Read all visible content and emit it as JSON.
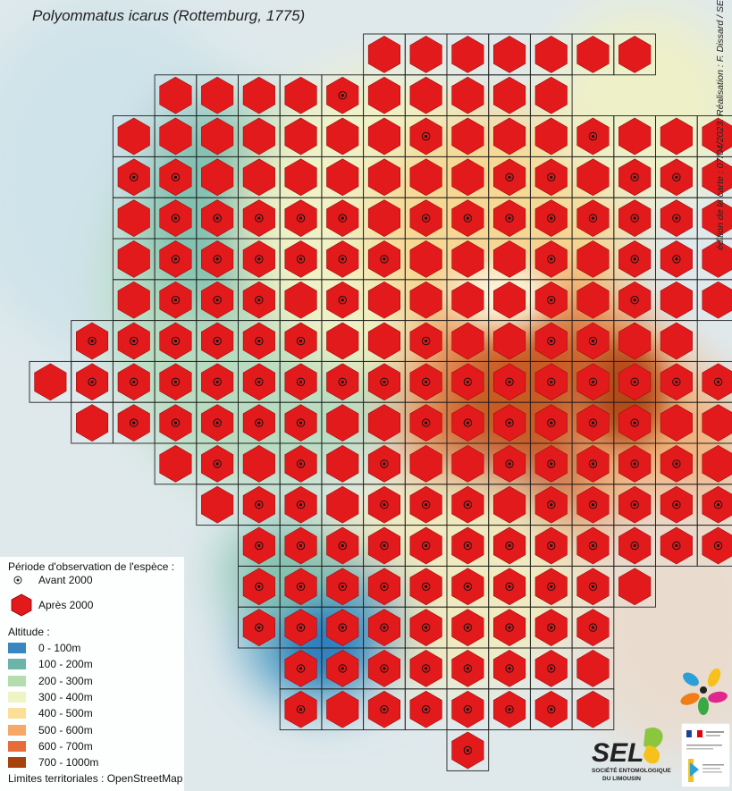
{
  "title": "Polyommatus icarus (Rottemburg, 1775)",
  "credit": "édition de la carte : 07/04/2023. Réalisation : F. Dissard / SEL",
  "legend": {
    "period_title": "Période d'observation de l'espèce :",
    "before": "Avant 2000",
    "after": "Après 2000",
    "altitude_title": "Altitude :",
    "altitude_classes": [
      {
        "label": "0 - 100m",
        "color": "#3a86c0"
      },
      {
        "label": "100 - 200m",
        "color": "#6bb5a8"
      },
      {
        "label": "200 - 300m",
        "color": "#b5dcae"
      },
      {
        "label": "300 - 400m",
        "color": "#eef4c4"
      },
      {
        "label": "400 - 500m",
        "color": "#fbdf98"
      },
      {
        "label": "500 - 600m",
        "color": "#f5a868"
      },
      {
        "label": "600 - 700m",
        "color": "#e66c3a"
      },
      {
        "label": "700 - 1000m",
        "color": "#a8420c"
      }
    ],
    "limits": "Limites territoriales : OpenStreetMap"
  },
  "colors": {
    "hexagon": "#e31a1c",
    "grid": "#222222"
  },
  "logo": {
    "name": "SEL",
    "subtitle1": "SOCIÉTÉ ENTOMOLOGIQUE",
    "subtitle2": "DU LIMOUSIN"
  },
  "grid": {
    "rows": [
      {
        "cells": "........HHHHHHH.."
      },
      {
        "cells": "...HHHHDHHHHH...."
      },
      {
        "cells": "..HHHHHHHDHHHDHHH"
      },
      {
        "cells": "..DDHHHHHHHDDHDDH"
      },
      {
        "cells": "..HDDDDDHDDDDDDDH"
      },
      {
        "cells": "..HDDDDDDHHHDHDDH"
      },
      {
        "cells": "..HDDDHDHHHHDHDHH"
      },
      {
        "cells": ".DDDDDDHHDHHDDHH."
      },
      {
        "cells": "HDDDDDDDDDDDDDDDD"
      },
      {
        "cells": ".HDDDDDHHDDDDDDHH"
      },
      {
        "cells": "...HDHDHDHHDDDDDH"
      },
      {
        "cells": "....HDDHDDDHDDDDD"
      },
      {
        "cells": ".....DDDDDDDDDDDD"
      },
      {
        "cells": ".....DDDDDDDDDH.."
      },
      {
        "cells": ".....DDDDDDDDD..."
      },
      {
        "cells": "......DDDDDDDH..."
      },
      {
        "cells": "......DHDDDDDH..."
      },
      {
        "cells": "..........D......"
      }
    ]
  }
}
